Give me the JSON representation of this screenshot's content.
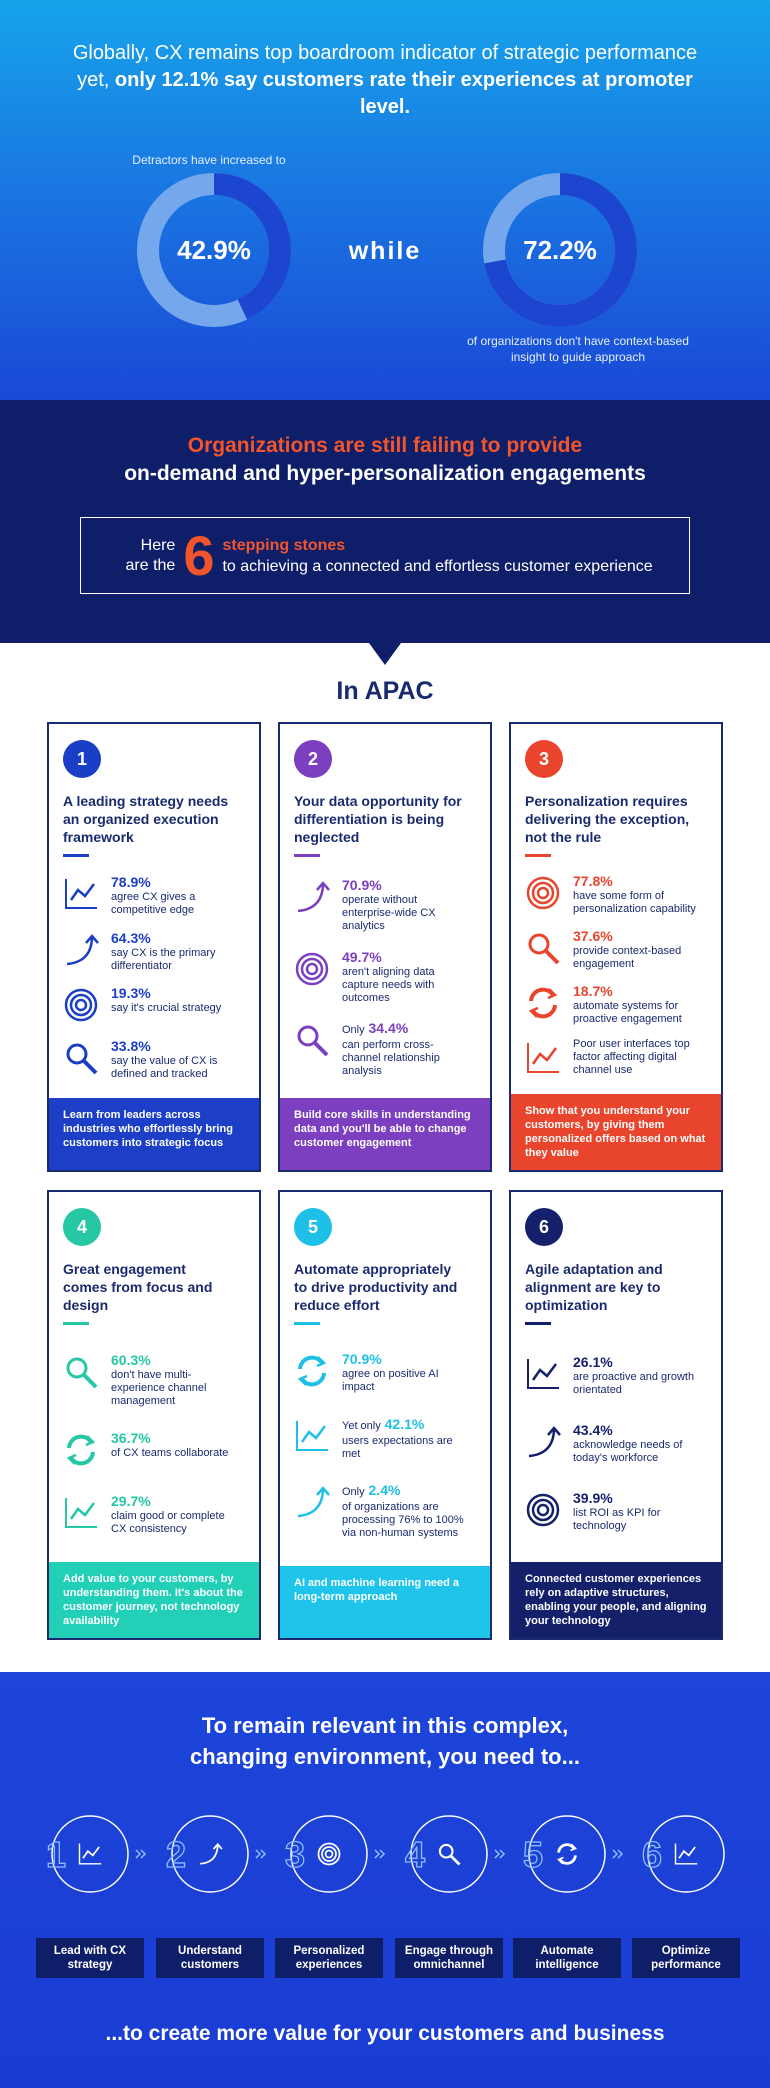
{
  "hero": {
    "title": "Globally, CX remains top boardroom indicator of strategic performance yet,",
    "title_emphasis": "only 12.1% say customers rate their experiences at promoter level.",
    "stats": [
      {
        "caption": "Detractors have increased to",
        "value": 42.9,
        "label": "42.9%"
      },
      {
        "value": 72.2,
        "label": "72.2%",
        "caption": "of organizations don't have context-based insight to guide approach"
      }
    ],
    "connector": "while"
  },
  "banner": {
    "headline_accent": "Organizations are still failing to provide",
    "headline": "on-demand and hyper-personalization engagements",
    "callout": {
      "lead": "Here are the",
      "number": "6",
      "accent": "stepping stones",
      "text": "to achieving a connected and effortless customer experience"
    }
  },
  "apac": {
    "title": "In APAC",
    "cards": [
      {
        "number": "1",
        "title": "A leading strategy needs an organized execution framework",
        "stats": [
          {
            "value": "78.9%",
            "text": "agree CX gives a competitive edge"
          },
          {
            "value": "64.3%",
            "text": "say CX is the primary differentiator"
          },
          {
            "value": "19.3%",
            "text": "say it's crucial strategy"
          },
          {
            "value": "33.8%",
            "text": "say the value of CX is defined and tracked"
          }
        ],
        "footer": "Learn from leaders across industries who effortlessly bring customers into strategic focus"
      },
      {
        "number": "2",
        "title": "Your data opportunity for differentiation is being neglected",
        "stats": [
          {
            "value": "70.9%",
            "text": "operate without enterprise-wide CX analytics"
          },
          {
            "value": "49.7%",
            "text": "aren't aligning data capture needs with outcomes"
          },
          {
            "prefix": "Only",
            "value": "34.4%",
            "text": "can perform cross-channel relationship analysis"
          }
        ],
        "footer": "Build core skills in understanding data and you'll be able to change customer engagement"
      },
      {
        "number": "3",
        "title": "Personalization requires delivering the exception, not the rule",
        "stats": [
          {
            "value": "77.8%",
            "text": "have some form of personalization capability"
          },
          {
            "value": "37.6%",
            "text": "provide context-based engagement"
          },
          {
            "value": "18.7%",
            "text": "automate systems for proactive engagement"
          },
          {
            "text": "Poor user interfaces top factor affecting digital channel use"
          }
        ],
        "footer": "Show that you understand your customers, by giving them personalized offers based on what they value"
      },
      {
        "number": "4",
        "title": "Great engagement comes from focus and design",
        "stats": [
          {
            "value": "60.3%",
            "text": "don't have multi-experience channel management"
          },
          {
            "value": "36.7%",
            "text": "of CX teams collaborate"
          },
          {
            "value": "29.7%",
            "text": "claim good or complete CX consistency"
          }
        ],
        "footer": "Add value to your customers, by understanding them. It's about the customer journey, not technology availability"
      },
      {
        "number": "5",
        "title": "Automate appropriately to drive productivity and reduce effort",
        "stats": [
          {
            "value": "70.9%",
            "text": "agree on positive AI impact"
          },
          {
            "prefix": "Yet only",
            "value": "42.1%",
            "text": "users expectations are met"
          },
          {
            "prefix": "Only",
            "value": "2.4%",
            "text": "of organizations are processing 76% to 100% via non-human systems"
          }
        ],
        "footer": "AI and machine learning need a long-term approach"
      },
      {
        "number": "6",
        "title": "Agile adaptation and alignment are key to optimization",
        "stats": [
          {
            "value": "26.1%",
            "text": "are proactive and growth orientated"
          },
          {
            "value": "43.4%",
            "text": "acknowledge needs of today's workforce"
          },
          {
            "value": "39.9%",
            "text": "list ROI as KPI for technology"
          }
        ],
        "footer": "Connected customer experiences rely on adaptive structures, enabling your people, and aligning your technology"
      }
    ]
  },
  "closing": {
    "title": "To remain relevant in this complex, changing environment, you need to...",
    "steps": [
      {
        "number": "1",
        "label": "Lead with CX strategy"
      },
      {
        "number": "2",
        "label": "Understand customers"
      },
      {
        "number": "3",
        "label": "Personalized experiences"
      },
      {
        "number": "4",
        "label": "Engage through omnichannel"
      },
      {
        "number": "5",
        "label": "Automate intelligence"
      },
      {
        "number": "6",
        "label": "Optimize performance"
      }
    ],
    "footer": "...to create more value for your customers and business"
  }
}
